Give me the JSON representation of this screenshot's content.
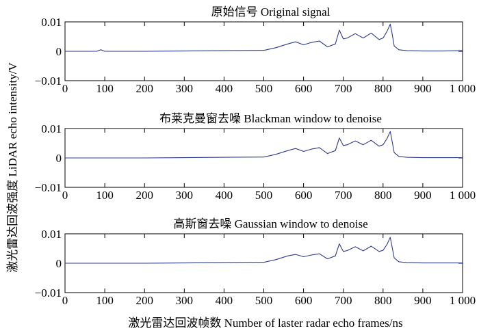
{
  "figure": {
    "ylabel": "激光雷达回波强度 LiDAR echo intensity/V",
    "xlabel": "激光雷达回波帧数 Number of laster radar echo frames/ns"
  },
  "chart_data": [
    {
      "type": "line",
      "title": "原始信号 Original signal",
      "xlim": [
        0,
        1000
      ],
      "ylim": [
        -0.01,
        0.01
      ],
      "xticks": [
        "0",
        "100",
        "200",
        "300",
        "400",
        "500",
        "600",
        "700",
        "800",
        "900",
        "1 000"
      ],
      "yticks": [
        "0.01",
        "0",
        "-0.01"
      ],
      "grid": false,
      "series_color": "#2b3a8c",
      "x": [
        0,
        80,
        90,
        100,
        200,
        300,
        400,
        500,
        530,
        560,
        580,
        600,
        620,
        640,
        660,
        680,
        690,
        700,
        710,
        730,
        750,
        770,
        790,
        800,
        810,
        818,
        822,
        828,
        840,
        860,
        900,
        950,
        1000
      ],
      "values": [
        0,
        0,
        0.0005,
        0,
        0,
        0.0001,
        0.0002,
        0.0003,
        0.0012,
        0.0025,
        0.0032,
        0.0022,
        0.003,
        0.0035,
        0.0015,
        0.0025,
        0.0072,
        0.0042,
        0.0045,
        0.006,
        0.0045,
        0.0062,
        0.004,
        0.0045,
        0.0068,
        0.0092,
        0.0065,
        0.0018,
        0.0005,
        0.0002,
        0.0001,
        0.0001,
        0.0002
      ]
    },
    {
      "type": "line",
      "title": "布莱克曼窗去噪 Blackman window to denoise",
      "xlim": [
        0,
        1000
      ],
      "ylim": [
        -0.01,
        0.01
      ],
      "xticks": [
        "0",
        "100",
        "200",
        "300",
        "400",
        "500",
        "600",
        "700",
        "800",
        "900",
        "1 000"
      ],
      "yticks": [
        "0.01",
        "0",
        "-0.01"
      ],
      "grid": false,
      "series_color": "#2b3a8c",
      "x": [
        0,
        100,
        200,
        300,
        400,
        500,
        530,
        560,
        580,
        600,
        620,
        640,
        660,
        680,
        690,
        700,
        710,
        730,
        750,
        770,
        790,
        800,
        810,
        818,
        822,
        828,
        840,
        860,
        900,
        950,
        1000
      ],
      "values": [
        0,
        0,
        0,
        0.0001,
        0.0002,
        0.0003,
        0.0012,
        0.0025,
        0.0032,
        0.0022,
        0.003,
        0.0035,
        0.0015,
        0.0025,
        0.0068,
        0.0042,
        0.0045,
        0.0058,
        0.0045,
        0.006,
        0.004,
        0.0045,
        0.0066,
        0.009,
        0.0062,
        0.0018,
        0.0005,
        0.0002,
        0.0001,
        0.0001,
        0.0001
      ]
    },
    {
      "type": "line",
      "title": "高斯窗去噪 Gaussian window to denoise",
      "xlim": [
        0,
        1000
      ],
      "ylim": [
        -0.01,
        0.01
      ],
      "xticks": [
        "0",
        "100",
        "200",
        "300",
        "400",
        "500",
        "600",
        "700",
        "800",
        "900",
        "1 000"
      ],
      "yticks": [
        "0.01",
        "0",
        "-0.01"
      ],
      "grid": false,
      "series_color": "#2b3a8c",
      "x": [
        0,
        100,
        200,
        300,
        400,
        500,
        530,
        560,
        580,
        600,
        620,
        640,
        660,
        680,
        690,
        700,
        710,
        730,
        750,
        770,
        790,
        800,
        810,
        818,
        822,
        828,
        840,
        860,
        900,
        950,
        1000
      ],
      "values": [
        0,
        0,
        0,
        0.0001,
        0.0002,
        0.0003,
        0.0012,
        0.0025,
        0.003,
        0.0022,
        0.0028,
        0.0032,
        0.0015,
        0.0025,
        0.0066,
        0.004,
        0.0043,
        0.0056,
        0.0042,
        0.0058,
        0.004,
        0.0044,
        0.0064,
        0.0088,
        0.006,
        0.0018,
        0.0005,
        0.0002,
        0.0001,
        0.0001,
        0.0001
      ]
    }
  ]
}
